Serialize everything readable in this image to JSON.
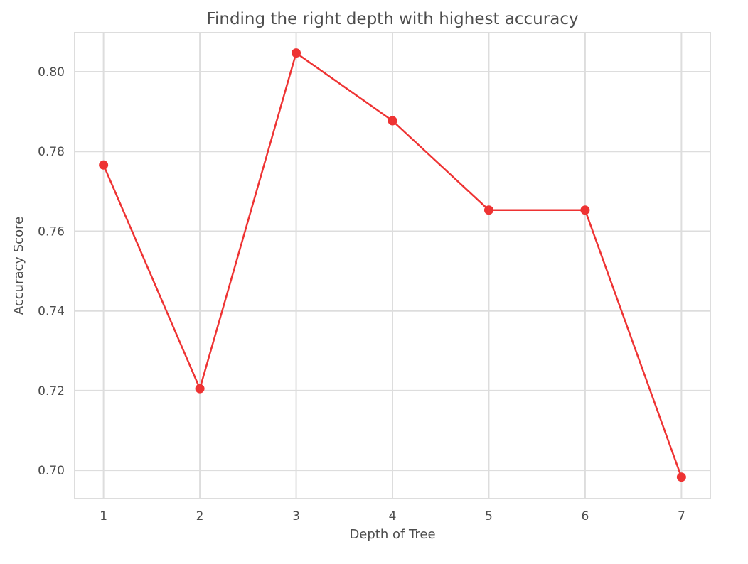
{
  "chart_data": {
    "type": "line",
    "title": "Finding the right depth with highest accuracy",
    "xlabel": "Depth of Tree",
    "ylabel": "Accuracy Score",
    "x": [
      1,
      2,
      3,
      4,
      5,
      6,
      7
    ],
    "series": [
      {
        "values": [
          0.7766,
          0.7205,
          0.8047,
          0.7877,
          0.7653,
          0.7653,
          0.6983
        ],
        "color": "#ee3333"
      }
    ],
    "x_ticks": [
      "1",
      "2",
      "3",
      "4",
      "5",
      "6",
      "7"
    ],
    "y_ticks": [
      "0.70",
      "0.72",
      "0.74",
      "0.76",
      "0.78",
      "0.80"
    ],
    "y_tick_values": [
      0.7,
      0.72,
      0.74,
      0.76,
      0.78,
      0.8
    ],
    "xlim": [
      0.7,
      7.3
    ],
    "ylim": [
      0.6929,
      0.8098
    ],
    "grid": true,
    "marker": "circle",
    "colors": {
      "grid": "#dddddd",
      "frame": "#dddddd",
      "line": "#ee3333"
    }
  }
}
